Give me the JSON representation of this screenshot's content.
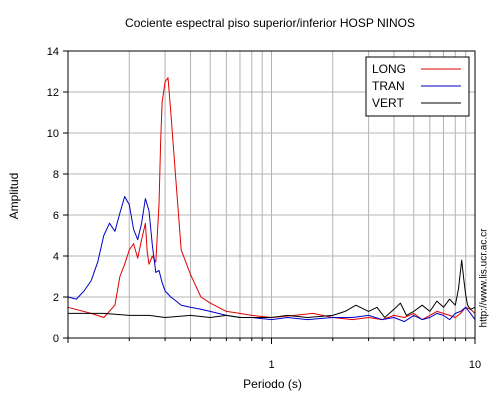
{
  "chart_data": {
    "type": "line",
    "title": "Cociente espectral piso superior/inferior  HOSP NINOS",
    "xlabel": "Periodo (s)",
    "ylabel": "Amplitud",
    "x_scale": "log",
    "xlim": [
      0.1,
      10
    ],
    "ylim": [
      0,
      14
    ],
    "x_ticks": [
      1,
      10
    ],
    "y_ticks": [
      0,
      2,
      4,
      6,
      8,
      10,
      12,
      14
    ],
    "grid": true,
    "legend_position": "top-right",
    "series": [
      {
        "name": "LONG",
        "color": "#e00000",
        "x": [
          0.1,
          0.13,
          0.15,
          0.17,
          0.18,
          0.19,
          0.2,
          0.21,
          0.22,
          0.23,
          0.24,
          0.245,
          0.25,
          0.26,
          0.27,
          0.28,
          0.285,
          0.29,
          0.3,
          0.31,
          0.32,
          0.34,
          0.36,
          0.4,
          0.45,
          0.5,
          0.6,
          0.7,
          0.8,
          1.0,
          1.3,
          1.6,
          2.0,
          2.5,
          3.0,
          3.5,
          4.0,
          4.5,
          5.0,
          5.5,
          6.0,
          6.5,
          7.0,
          7.5,
          8.0,
          8.5,
          9.0,
          9.5,
          10.0
        ],
        "values": [
          1.5,
          1.2,
          1.0,
          1.6,
          3.0,
          3.6,
          4.3,
          4.6,
          3.9,
          4.8,
          5.6,
          4.2,
          3.6,
          4.0,
          3.7,
          6.5,
          9.5,
          11.5,
          12.5,
          12.7,
          11.0,
          7.5,
          4.3,
          3.1,
          2.0,
          1.7,
          1.3,
          1.2,
          1.1,
          1.0,
          1.1,
          1.2,
          1.0,
          0.9,
          1.0,
          0.9,
          1.1,
          1.0,
          1.2,
          0.9,
          1.1,
          1.3,
          1.2,
          1.1,
          1.0,
          1.2,
          1.5,
          1.4,
          1.2
        ]
      },
      {
        "name": "TRAN",
        "color": "#0000c8",
        "x": [
          0.1,
          0.11,
          0.12,
          0.13,
          0.14,
          0.15,
          0.16,
          0.17,
          0.18,
          0.19,
          0.2,
          0.21,
          0.22,
          0.23,
          0.24,
          0.25,
          0.26,
          0.27,
          0.28,
          0.29,
          0.3,
          0.32,
          0.34,
          0.36,
          0.4,
          0.45,
          0.5,
          0.6,
          0.7,
          0.8,
          1.0,
          1.2,
          1.5,
          2.0,
          2.5,
          3.0,
          3.5,
          4.0,
          4.5,
          5.0,
          5.5,
          6.0,
          6.5,
          7.0,
          7.5,
          8.0,
          8.5,
          9.0,
          9.5,
          10.0
        ],
        "values": [
          2.0,
          1.9,
          2.3,
          2.8,
          3.7,
          5.0,
          5.6,
          5.2,
          6.1,
          6.9,
          6.5,
          5.3,
          4.8,
          5.6,
          6.8,
          6.2,
          4.5,
          3.2,
          3.3,
          2.7,
          2.3,
          2.0,
          1.8,
          1.6,
          1.5,
          1.4,
          1.3,
          1.1,
          1.0,
          1.0,
          0.9,
          1.0,
          0.9,
          1.0,
          1.0,
          1.1,
          0.9,
          1.0,
          0.8,
          1.1,
          0.9,
          1.0,
          1.2,
          1.1,
          0.9,
          1.2,
          1.3,
          1.5,
          1.2,
          0.9
        ]
      },
      {
        "name": "VERT",
        "color": "#000000",
        "x": [
          0.1,
          0.12,
          0.15,
          0.2,
          0.25,
          0.3,
          0.4,
          0.5,
          0.6,
          0.7,
          0.8,
          1.0,
          1.2,
          1.5,
          2.0,
          2.3,
          2.6,
          3.0,
          3.3,
          3.6,
          4.0,
          4.3,
          4.6,
          5.0,
          5.5,
          6.0,
          6.5,
          7.0,
          7.5,
          8.0,
          8.3,
          8.6,
          8.8,
          9.0,
          9.2,
          9.5,
          10.0
        ],
        "values": [
          1.2,
          1.2,
          1.2,
          1.1,
          1.1,
          1.0,
          1.1,
          1.0,
          1.1,
          1.0,
          1.0,
          1.0,
          1.1,
          1.0,
          1.1,
          1.3,
          1.6,
          1.3,
          1.5,
          1.0,
          1.4,
          1.7,
          1.1,
          1.3,
          1.6,
          1.3,
          1.8,
          1.5,
          1.9,
          1.6,
          2.4,
          3.8,
          2.9,
          2.1,
          1.6,
          1.4,
          1.5
        ]
      }
    ]
  },
  "credit_text": "http://www.lis.ucr.ac.cr"
}
